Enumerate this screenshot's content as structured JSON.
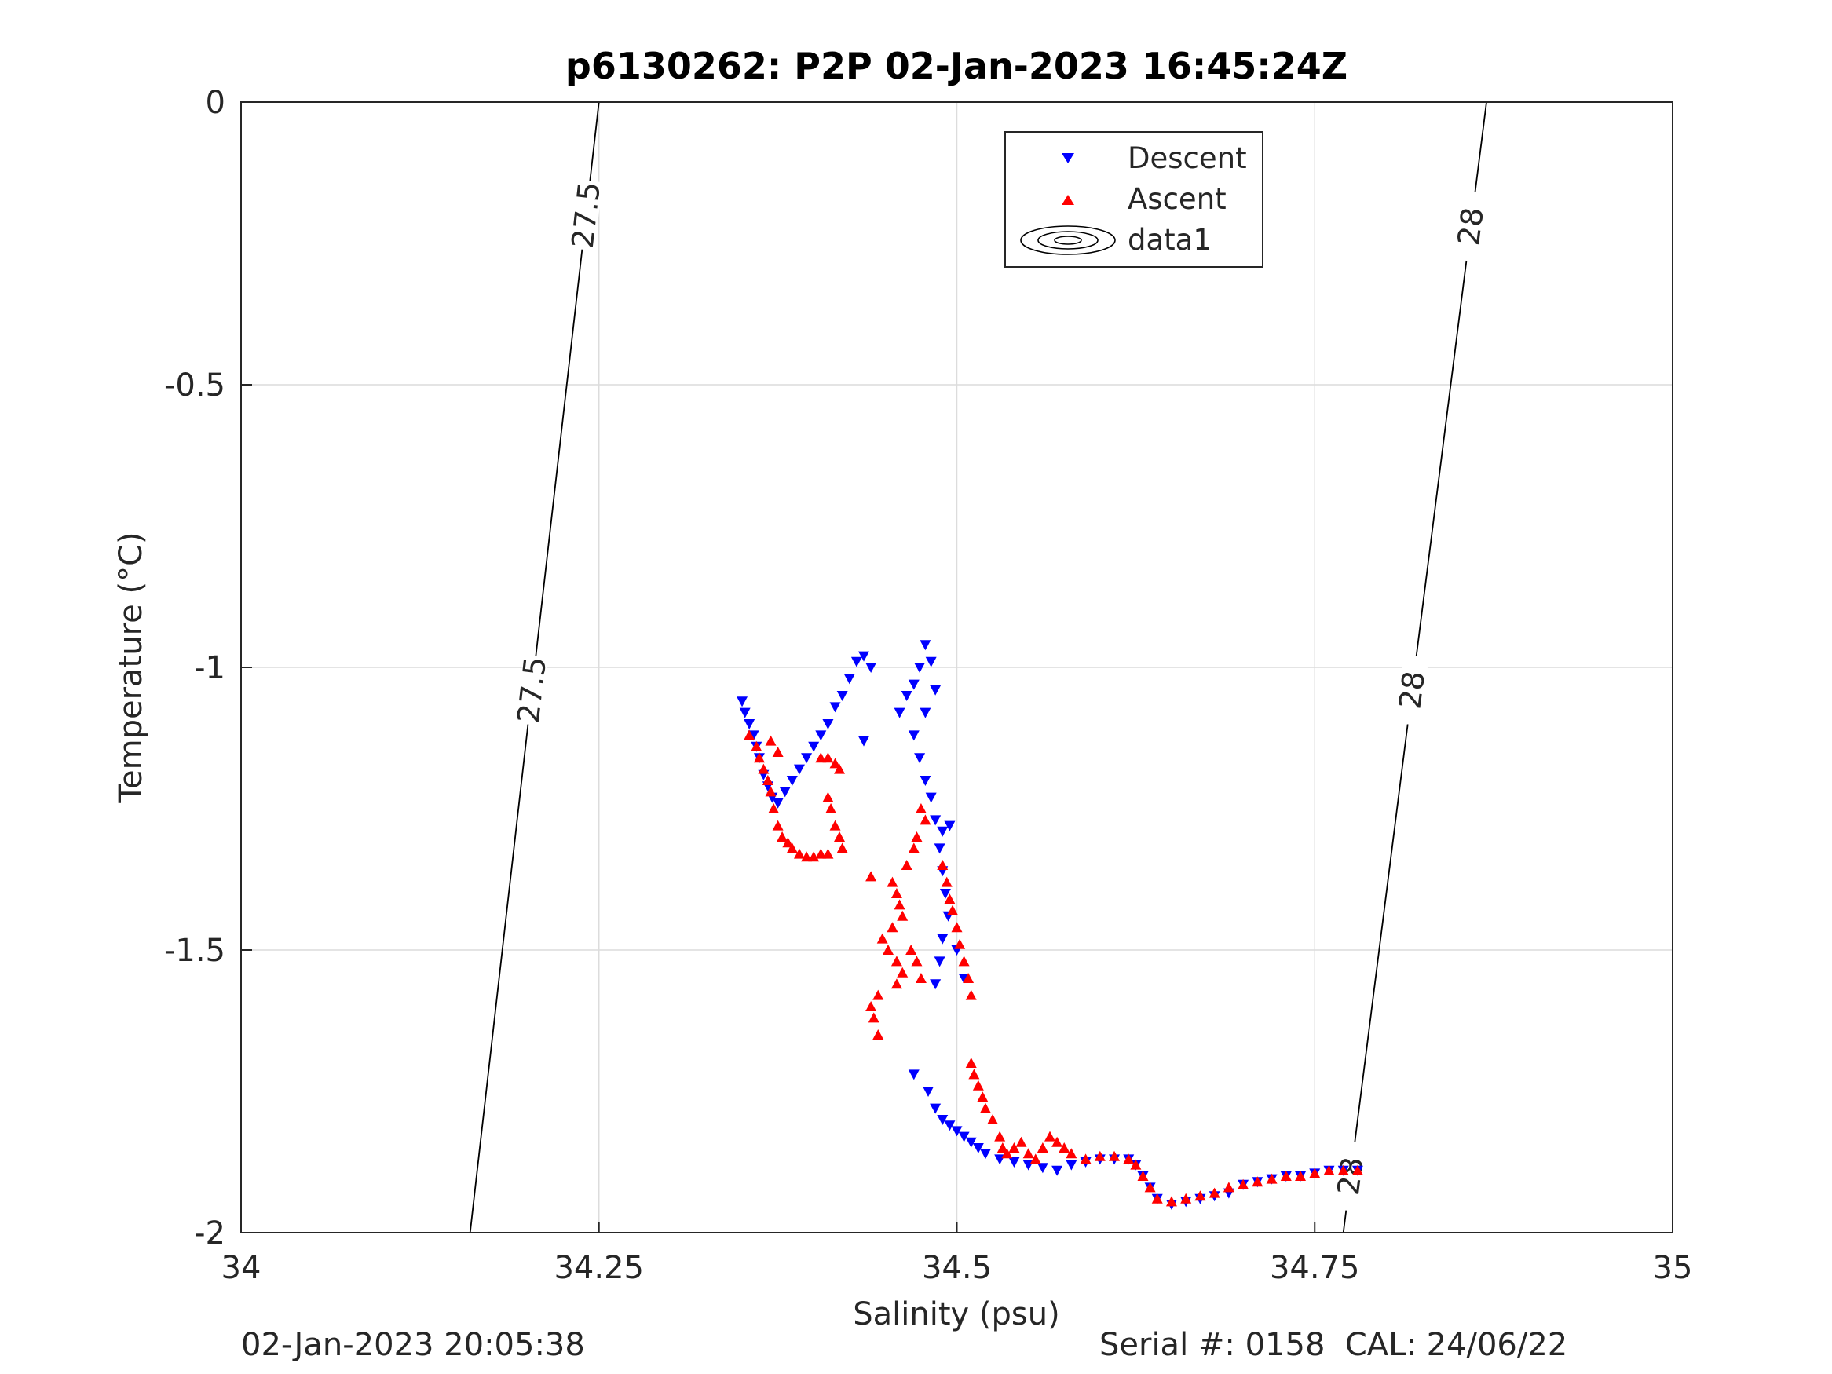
{
  "chart_data": {
    "type": "scatter",
    "title": "p6130262: P2P 02-Jan-2023 16:45:24Z",
    "xlabel": "Salinity (psu)",
    "ylabel": "Temperature (°C)",
    "xlim": [
      34,
      35
    ],
    "ylim": [
      -2,
      0
    ],
    "xticks": [
      34,
      34.25,
      34.5,
      34.75,
      35
    ],
    "xtick_labels": [
      "34",
      "34.25",
      "34.5",
      "34.75",
      "35"
    ],
    "yticks": [
      0,
      -0.5,
      -1,
      -1.5,
      -2
    ],
    "ytick_labels": [
      "0",
      "-0.5",
      "-1",
      "-1.5",
      "-2"
    ],
    "grid": true,
    "legend_position": "top-center",
    "legend": [
      "Descent",
      "Ascent",
      "data1"
    ],
    "contours": [
      {
        "label": "27.5",
        "color": "#000000",
        "points": [
          [
            34.16,
            -2
          ],
          [
            34.25,
            0
          ]
        ],
        "label_at_y": [
          -0.2,
          -1.04
        ]
      },
      {
        "label": "28",
        "color": "#000000",
        "points": [
          [
            34.77,
            -2
          ],
          [
            34.87,
            0
          ]
        ],
        "label_at_y": [
          -0.22,
          -1.04,
          -1.9
        ]
      }
    ],
    "series": [
      {
        "name": "Descent",
        "marker": "triangle-down",
        "color": "#0000ff",
        "points": [
          [
            34.35,
            -1.06
          ],
          [
            34.352,
            -1.08
          ],
          [
            34.355,
            -1.1
          ],
          [
            34.358,
            -1.12
          ],
          [
            34.36,
            -1.14
          ],
          [
            34.362,
            -1.16
          ],
          [
            34.365,
            -1.19
          ],
          [
            34.368,
            -1.21
          ],
          [
            34.371,
            -1.23
          ],
          [
            34.375,
            -1.24
          ],
          [
            34.38,
            -1.22
          ],
          [
            34.385,
            -1.2
          ],
          [
            34.39,
            -1.18
          ],
          [
            34.395,
            -1.16
          ],
          [
            34.4,
            -1.14
          ],
          [
            34.405,
            -1.12
          ],
          [
            34.41,
            -1.1
          ],
          [
            34.415,
            -1.07
          ],
          [
            34.42,
            -1.05
          ],
          [
            34.425,
            -1.02
          ],
          [
            34.43,
            -0.99
          ],
          [
            34.435,
            -0.98
          ],
          [
            34.44,
            -1.0
          ],
          [
            34.435,
            -1.13
          ],
          [
            34.46,
            -1.08
          ],
          [
            34.465,
            -1.05
          ],
          [
            34.47,
            -1.03
          ],
          [
            34.474,
            -1.0
          ],
          [
            34.478,
            -0.96
          ],
          [
            34.482,
            -0.99
          ],
          [
            34.485,
            -1.04
          ],
          [
            34.478,
            -1.08
          ],
          [
            34.47,
            -1.12
          ],
          [
            34.474,
            -1.16
          ],
          [
            34.478,
            -1.2
          ],
          [
            34.482,
            -1.23
          ],
          [
            34.485,
            -1.27
          ],
          [
            34.49,
            -1.29
          ],
          [
            34.495,
            -1.28
          ],
          [
            34.488,
            -1.32
          ],
          [
            34.49,
            -1.36
          ],
          [
            34.492,
            -1.4
          ],
          [
            34.494,
            -1.44
          ],
          [
            34.49,
            -1.48
          ],
          [
            34.488,
            -1.52
          ],
          [
            34.485,
            -1.56
          ],
          [
            34.5,
            -1.5
          ],
          [
            34.505,
            -1.55
          ],
          [
            34.47,
            -1.72
          ],
          [
            34.48,
            -1.75
          ],
          [
            34.485,
            -1.78
          ],
          [
            34.49,
            -1.8
          ],
          [
            34.495,
            -1.81
          ],
          [
            34.5,
            -1.82
          ],
          [
            34.505,
            -1.83
          ],
          [
            34.51,
            -1.84
          ],
          [
            34.515,
            -1.85
          ],
          [
            34.52,
            -1.86
          ],
          [
            34.53,
            -1.87
          ],
          [
            34.54,
            -1.875
          ],
          [
            34.55,
            -1.88
          ],
          [
            34.56,
            -1.885
          ],
          [
            34.57,
            -1.89
          ],
          [
            34.58,
            -1.88
          ],
          [
            34.59,
            -1.875
          ],
          [
            34.6,
            -1.87
          ],
          [
            34.61,
            -1.87
          ],
          [
            34.62,
            -1.87
          ],
          [
            34.625,
            -1.88
          ],
          [
            34.63,
            -1.9
          ],
          [
            34.635,
            -1.92
          ],
          [
            34.64,
            -1.94
          ],
          [
            34.65,
            -1.95
          ],
          [
            34.66,
            -1.945
          ],
          [
            34.67,
            -1.94
          ],
          [
            34.68,
            -1.935
          ],
          [
            34.69,
            -1.93
          ],
          [
            34.7,
            -1.915
          ],
          [
            34.71,
            -1.91
          ],
          [
            34.72,
            -1.905
          ],
          [
            34.73,
            -1.9
          ],
          [
            34.74,
            -1.9
          ],
          [
            34.75,
            -1.895
          ],
          [
            34.76,
            -1.89
          ],
          [
            34.77,
            -1.89
          ],
          [
            34.78,
            -1.89
          ]
        ]
      },
      {
        "name": "Ascent",
        "marker": "triangle-up",
        "color": "#ff0000",
        "points": [
          [
            34.355,
            -1.12
          ],
          [
            34.36,
            -1.14
          ],
          [
            34.362,
            -1.16
          ],
          [
            34.365,
            -1.18
          ],
          [
            34.368,
            -1.2
          ],
          [
            34.37,
            -1.22
          ],
          [
            34.372,
            -1.25
          ],
          [
            34.375,
            -1.28
          ],
          [
            34.378,
            -1.3
          ],
          [
            34.382,
            -1.31
          ],
          [
            34.385,
            -1.32
          ],
          [
            34.39,
            -1.33
          ],
          [
            34.395,
            -1.335
          ],
          [
            34.4,
            -1.335
          ],
          [
            34.405,
            -1.33
          ],
          [
            34.41,
            -1.33
          ],
          [
            34.405,
            -1.16
          ],
          [
            34.41,
            -1.16
          ],
          [
            34.415,
            -1.17
          ],
          [
            34.418,
            -1.18
          ],
          [
            34.41,
            -1.23
          ],
          [
            34.412,
            -1.25
          ],
          [
            34.415,
            -1.28
          ],
          [
            34.418,
            -1.3
          ],
          [
            34.42,
            -1.32
          ],
          [
            34.37,
            -1.13
          ],
          [
            34.375,
            -1.15
          ],
          [
            34.475,
            -1.25
          ],
          [
            34.478,
            -1.27
          ],
          [
            34.472,
            -1.3
          ],
          [
            34.47,
            -1.32
          ],
          [
            34.465,
            -1.35
          ],
          [
            34.44,
            -1.37
          ],
          [
            34.455,
            -1.38
          ],
          [
            34.458,
            -1.4
          ],
          [
            34.46,
            -1.42
          ],
          [
            34.462,
            -1.44
          ],
          [
            34.455,
            -1.46
          ],
          [
            34.448,
            -1.48
          ],
          [
            34.452,
            -1.5
          ],
          [
            34.458,
            -1.52
          ],
          [
            34.462,
            -1.54
          ],
          [
            34.458,
            -1.56
          ],
          [
            34.445,
            -1.58
          ],
          [
            34.44,
            -1.6
          ],
          [
            34.442,
            -1.62
          ],
          [
            34.445,
            -1.65
          ],
          [
            34.468,
            -1.5
          ],
          [
            34.472,
            -1.52
          ],
          [
            34.475,
            -1.55
          ],
          [
            34.49,
            -1.35
          ],
          [
            34.493,
            -1.38
          ],
          [
            34.495,
            -1.41
          ],
          [
            34.497,
            -1.43
          ],
          [
            34.5,
            -1.46
          ],
          [
            34.502,
            -1.49
          ],
          [
            34.505,
            -1.52
          ],
          [
            34.508,
            -1.55
          ],
          [
            34.51,
            -1.58
          ],
          [
            34.51,
            -1.7
          ],
          [
            34.512,
            -1.72
          ],
          [
            34.515,
            -1.74
          ],
          [
            34.518,
            -1.76
          ],
          [
            34.52,
            -1.78
          ],
          [
            34.525,
            -1.8
          ],
          [
            34.53,
            -1.83
          ],
          [
            34.532,
            -1.85
          ],
          [
            34.535,
            -1.86
          ],
          [
            34.54,
            -1.85
          ],
          [
            34.545,
            -1.84
          ],
          [
            34.55,
            -1.86
          ],
          [
            34.555,
            -1.87
          ],
          [
            34.56,
            -1.85
          ],
          [
            34.565,
            -1.83
          ],
          [
            34.57,
            -1.84
          ],
          [
            34.575,
            -1.85
          ],
          [
            34.58,
            -1.86
          ],
          [
            34.59,
            -1.87
          ],
          [
            34.6,
            -1.865
          ],
          [
            34.61,
            -1.865
          ],
          [
            34.62,
            -1.87
          ],
          [
            34.625,
            -1.88
          ],
          [
            34.63,
            -1.9
          ],
          [
            34.635,
            -1.92
          ],
          [
            34.64,
            -1.94
          ],
          [
            34.65,
            -1.945
          ],
          [
            34.66,
            -1.94
          ],
          [
            34.67,
            -1.935
          ],
          [
            34.68,
            -1.93
          ],
          [
            34.69,
            -1.92
          ],
          [
            34.7,
            -1.915
          ],
          [
            34.71,
            -1.91
          ],
          [
            34.72,
            -1.905
          ],
          [
            34.73,
            -1.9
          ],
          [
            34.74,
            -1.9
          ],
          [
            34.75,
            -1.895
          ],
          [
            34.76,
            -1.89
          ],
          [
            34.77,
            -1.89
          ],
          [
            34.78,
            -1.89
          ]
        ]
      }
    ]
  },
  "footer": {
    "left": "02-Jan-2023 20:05:38",
    "right": "Serial #: 0158  CAL: 24/06/22"
  }
}
